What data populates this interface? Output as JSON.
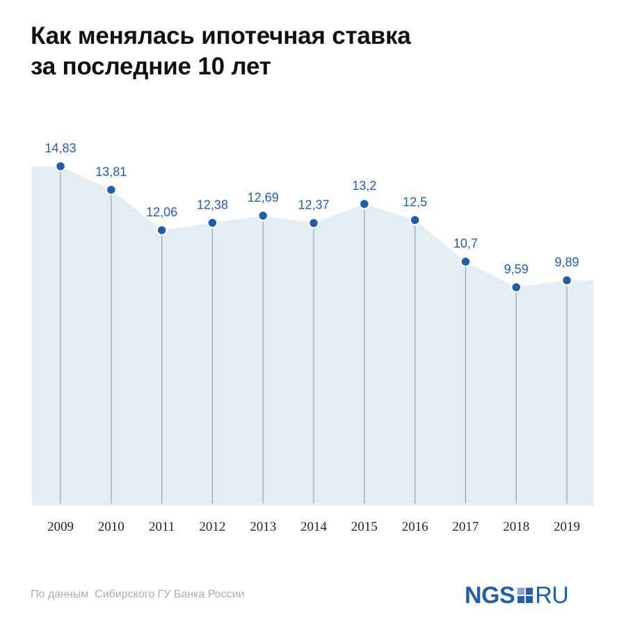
{
  "header": {
    "title_line1": "Как менялась ипотечная ставка",
    "title_line2": "за последние 10 лет"
  },
  "footer": {
    "source": "По данным  Сибирского ГУ Банка России",
    "logo_left": "NGS",
    "logo_right": "RU"
  },
  "colors": {
    "area_fill": "#e3edf6",
    "marker": "#1f5fae",
    "value_label": "#1f5fae",
    "drop_line": "#9aa0a6",
    "year_label": "#222222"
  },
  "chart_data": {
    "type": "area",
    "title": "Как менялась ипотечная ставка за последние 10 лет",
    "xlabel": "",
    "ylabel": "",
    "categories": [
      "2009",
      "2010",
      "2011",
      "2012",
      "2013",
      "2014",
      "2015",
      "2016",
      "2017",
      "2018",
      "2019"
    ],
    "values": [
      14.83,
      13.81,
      12.06,
      12.38,
      12.69,
      12.37,
      13.2,
      12.5,
      10.7,
      9.59,
      9.89
    ],
    "value_labels": [
      "14,83",
      "13,81",
      "12,06",
      "12,38",
      "12,69",
      "12,37",
      "13,2",
      "12,5",
      "10,7",
      "9,59",
      "9,89"
    ],
    "ylim": [
      0,
      16
    ],
    "grid": false,
    "legend": "none"
  }
}
